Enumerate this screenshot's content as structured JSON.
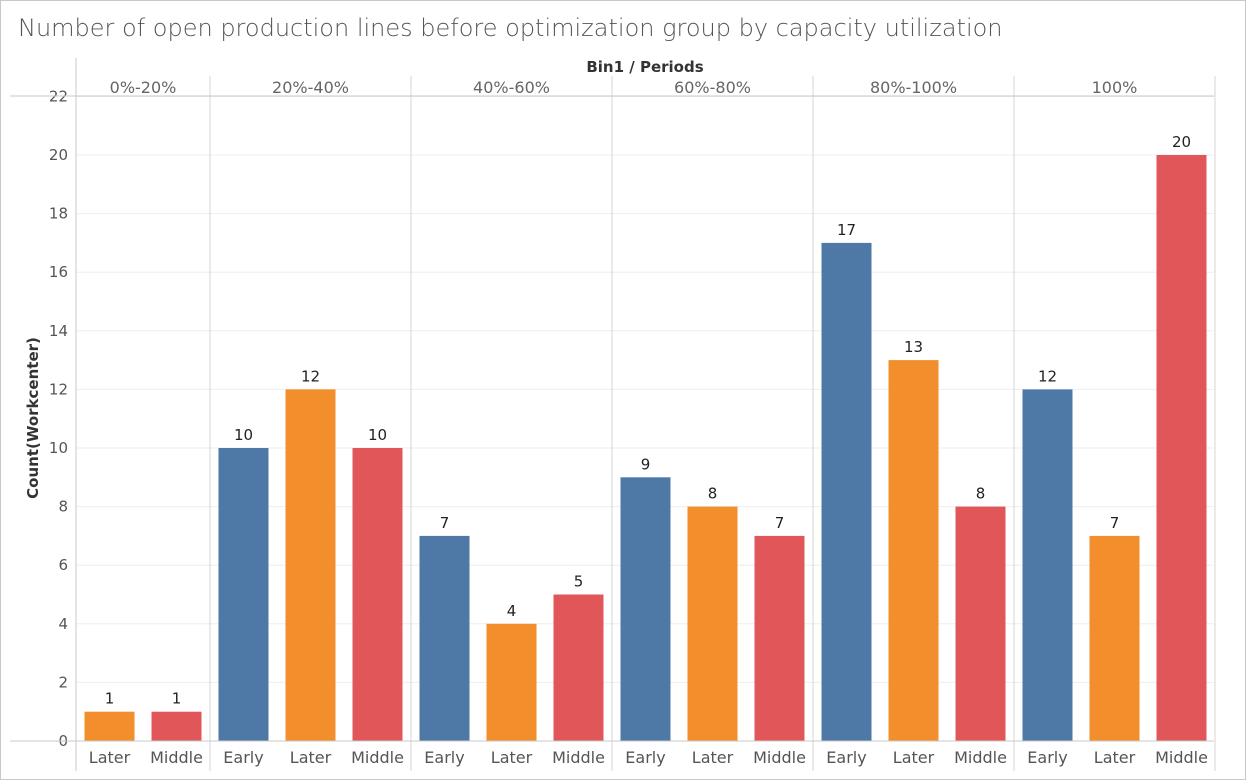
{
  "title": "Number of open production lines before optimization group by capacity utilization",
  "chart_data": {
    "type": "bar",
    "title": "Number of open production lines before optimization group by capacity utilization",
    "column_header": "Bin1 / Periods",
    "ylabel": "Count(Workcenter)",
    "ylim": [
      0,
      22
    ],
    "yticks": [
      0,
      2,
      4,
      6,
      8,
      10,
      12,
      14,
      16,
      18,
      20,
      22
    ],
    "grid": true,
    "legend": "none",
    "colors": {
      "Early": "#4e79a7",
      "Later": "#f28e2b",
      "Middle": "#e15759"
    },
    "groups": [
      {
        "name": "0%-20%",
        "bars": [
          {
            "period": "Later",
            "value": 1
          },
          {
            "period": "Middle",
            "value": 1
          }
        ]
      },
      {
        "name": "20%-40%",
        "bars": [
          {
            "period": "Early",
            "value": 10
          },
          {
            "period": "Later",
            "value": 12
          },
          {
            "period": "Middle",
            "value": 10
          }
        ]
      },
      {
        "name": "40%-60%",
        "bars": [
          {
            "period": "Early",
            "value": 7
          },
          {
            "period": "Later",
            "value": 4
          },
          {
            "period": "Middle",
            "value": 5
          }
        ]
      },
      {
        "name": "60%-80%",
        "bars": [
          {
            "period": "Early",
            "value": 9
          },
          {
            "period": "Later",
            "value": 8
          },
          {
            "period": "Middle",
            "value": 7
          }
        ]
      },
      {
        "name": "80%-100%",
        "bars": [
          {
            "period": "Early",
            "value": 17
          },
          {
            "period": "Later",
            "value": 13
          },
          {
            "period": "Middle",
            "value": 8
          }
        ]
      },
      {
        "name": "100%",
        "bars": [
          {
            "period": "Early",
            "value": 12
          },
          {
            "period": "Later",
            "value": 7
          },
          {
            "period": "Middle",
            "value": 20
          }
        ]
      }
    ]
  }
}
